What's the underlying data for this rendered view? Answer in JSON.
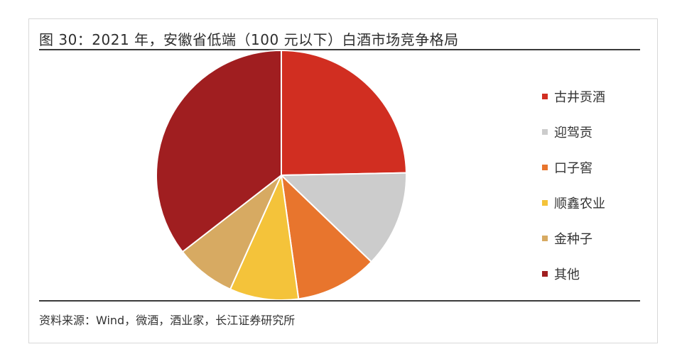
{
  "figure": {
    "title": "图 30：2021 年，安徽省低端（100 元以下）白酒市场竞争格局",
    "source": "资料来源：Wind，微酒，酒业家，长江证券研究所"
  },
  "chart_data": {
    "type": "pie",
    "title": "图 30：2021 年，安徽省低端（100 元以下）白酒市场竞争格局",
    "categories": [
      "古井贡酒",
      "迎驾贡",
      "口子窖",
      "顺鑫农业",
      "金种子",
      "其他"
    ],
    "values": [
      24.7,
      12.5,
      10.6,
      8.9,
      7.8,
      35.5
    ],
    "colors": [
      "#d12e21",
      "#cccccc",
      "#e8752d",
      "#f4c33a",
      "#d7aa62",
      "#a01e20"
    ],
    "start": "top",
    "direction": "clockwise",
    "legend": "right"
  }
}
